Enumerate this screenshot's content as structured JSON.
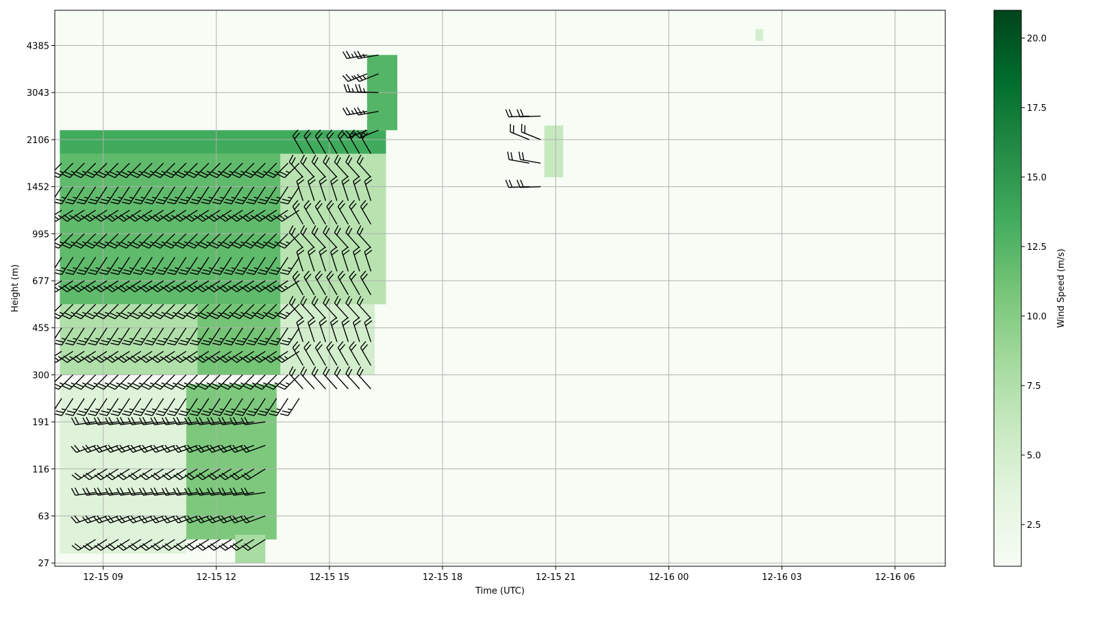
{
  "chart_data": [
    {
      "type": "heatmap",
      "title": "",
      "xlabel": "Time (UTC)",
      "ylabel": "Height (m)",
      "x_tick_labels": [
        "12-15 09",
        "12-15 12",
        "12-15 15",
        "12-15 18",
        "12-15 21",
        "12-16 00",
        "12-16 03",
        "12-16 06"
      ],
      "x_range": [
        "12-15 07:43",
        "12-16 07:20"
      ],
      "y_tick_labels": [
        "27",
        "63",
        "116",
        "191",
        "300",
        "455",
        "677",
        "995",
        "1452",
        "2106",
        "3043",
        "4385"
      ],
      "y_range_level_index": [
        -0.07,
        11.75
      ],
      "grid": true,
      "colormap": "Greens",
      "colorbar": {
        "label": "Wind Speed (m/s)",
        "range": [
          1.0,
          21.0
        ],
        "ticks": [
          "2.5",
          "5.0",
          "7.5",
          "10.0",
          "12.5",
          "15.0",
          "17.5",
          "20.0"
        ],
        "color_low": "#f7fcf5",
        "color_high": "#00441b"
      },
      "wind_speed_regions": [
        {
          "t_start": 7.85,
          "t_end": 16.5,
          "level_min": 8.7,
          "level_max": 9.2,
          "speed": 13.5
        },
        {
          "t_start": 7.85,
          "t_end": 13.7,
          "level_min": 5.5,
          "level_max": 8.7,
          "speed": 12.0
        },
        {
          "t_start": 13.7,
          "t_end": 16.5,
          "level_min": 5.5,
          "level_max": 8.7,
          "speed": 7.0
        },
        {
          "t_start": 7.85,
          "t_end": 11.5,
          "level_min": 4.0,
          "level_max": 5.5,
          "speed": 7.5
        },
        {
          "t_start": 11.5,
          "t_end": 13.7,
          "level_min": 4.0,
          "level_max": 5.5,
          "speed": 11.0
        },
        {
          "t_start": 13.7,
          "t_end": 16.2,
          "level_min": 4.0,
          "level_max": 5.5,
          "speed": 5.0
        },
        {
          "t_start": 11.2,
          "t_end": 13.6,
          "level_min": 0.5,
          "level_max": 3.8,
          "speed": 10.5
        },
        {
          "t_start": 7.85,
          "t_end": 11.2,
          "level_min": 0.2,
          "level_max": 3.8,
          "speed": 4.0
        },
        {
          "t_start": 12.5,
          "t_end": 13.3,
          "level_min": 0.0,
          "level_max": 0.6,
          "speed": 8.0
        },
        {
          "t_start": 16.0,
          "t_end": 16.8,
          "level_min": 9.2,
          "level_max": 10.8,
          "speed": 12.5
        },
        {
          "t_start": 20.7,
          "t_end": 21.2,
          "level_min": 8.2,
          "level_max": 9.3,
          "speed": 6.0
        },
        {
          "t_start": 26.3,
          "t_end": 26.5,
          "level_min": 11.1,
          "level_max": 11.35,
          "speed": 5.0
        }
      ],
      "wind_barbs": [
        {
          "t_start": 7.9,
          "t_end": 14.3,
          "levels": [
            3.5,
            4.0,
            4.5,
            5.0,
            5.5,
            6.0,
            6.5,
            7.0,
            7.5,
            8.0,
            8.5
          ],
          "direction_deg": 225,
          "speed_kt": 25
        },
        {
          "t_start": 14.3,
          "t_end": 16.2,
          "levels": [
            3.7,
            4.2,
            4.7,
            5.2,
            5.7,
            6.2,
            6.7,
            7.2,
            7.7,
            8.2,
            8.7
          ],
          "direction_deg": 330,
          "speed_kt": 20
        },
        {
          "t_start": 8.8,
          "t_end": 13.3,
          "levels": [
            0.5,
            1.0,
            1.5,
            2.0,
            2.5,
            3.0
          ],
          "direction_deg": 250,
          "speed_kt": 20
        },
        {
          "t_start": 16.0,
          "t_end": 16.5,
          "levels": [
            9.2,
            9.6,
            10.0,
            10.4,
            10.8
          ],
          "direction_deg": 260,
          "speed_kt": 25
        },
        {
          "t_start": 20.3,
          "t_end": 20.8,
          "levels": [
            8.0,
            8.5,
            9.0,
            9.5
          ],
          "direction_deg": 280,
          "speed_kt": 20
        }
      ]
    }
  ]
}
